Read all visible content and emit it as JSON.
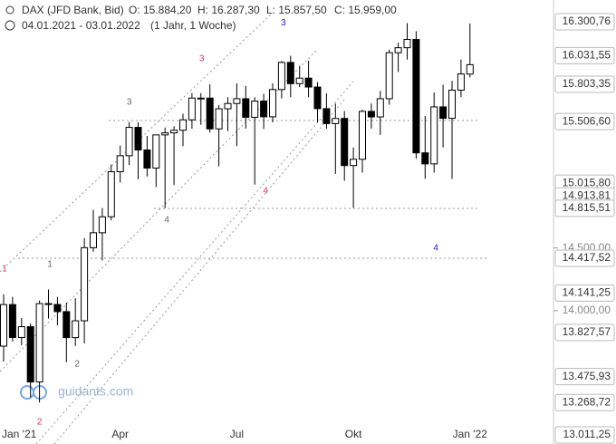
{
  "chart_data": {
    "type": "candlestick",
    "title": "DAX (JFD Bank, Bid)",
    "ohlc_labels": [
      "O: 15.884,20",
      "H: 16.287,30",
      "L: 15.857,50",
      "C: 15.959,00"
    ],
    "date_range": "04.01.2021 - 03.01.2022",
    "period": "(1 Jahr, 1 Woche)",
    "watermark": "guidants.com",
    "categories": [
      "Jan '21",
      null,
      null,
      null,
      null,
      null,
      null,
      null,
      null,
      null,
      null,
      null,
      null,
      "Apr",
      null,
      null,
      null,
      null,
      null,
      null,
      null,
      null,
      null,
      null,
      null,
      null,
      "Jul",
      null,
      null,
      null,
      null,
      null,
      null,
      null,
      null,
      null,
      null,
      null,
      null,
      "Okt",
      null,
      null,
      null,
      null,
      null,
      null,
      null,
      null,
      null,
      null,
      null,
      null,
      "Jan '22"
    ],
    "open": [
      13718,
      14049,
      13787,
      13873,
      13433,
      14057,
      14050,
      13993,
      13786,
      13920,
      14502,
      14621,
      14748,
      15107,
      15234,
      15460,
      15280,
      15136,
      15400,
      15416,
      15437,
      15520,
      15693,
      15693,
      15448,
      15608,
      15650,
      15688,
      15540,
      15669,
      15544,
      15761,
      15977,
      15808,
      15852,
      15781,
      15609,
      15490,
      15531,
      15156,
      15206,
      15587,
      15543,
      15688,
      16054,
      16094,
      16160,
      15257,
      15169,
      15623,
      15532,
      15756,
      15884.2
    ],
    "high": [
      14131,
      14111,
      13942,
      13900,
      14081,
      14169,
      14110,
      14064,
      14099,
      14579,
      14804,
      14818,
      15163,
      15315,
      15502,
      15501,
      15392,
      15400,
      15459,
      15469,
      15569,
      15733,
      15732,
      15803,
      15636,
      15700,
      15810,
      15790,
      15700,
      15727,
      15810,
      15988,
      16030,
      15950,
      15990,
      15820,
      15730,
      15650,
      15590,
      15300,
      15600,
      15650,
      15750,
      16080,
      16134,
      16290,
      16225,
      15550,
      15738,
      15800,
      15830,
      16000,
      16287.3
    ],
    "low": [
      13596,
      13755,
      13726,
      13311,
      13269,
      13938,
      13884,
      13590,
      13720,
      13740,
      14470,
      14400,
      14720,
      15020,
      15160,
      15047,
      15069,
      14985,
      14816,
      15000,
      15311,
      15450,
      15480,
      15418,
      15150,
      15430,
      15311,
      15450,
      15004,
      15447,
      15500,
      15690,
      15700,
      15780,
      15700,
      15500,
      15450,
      15090,
      15035,
      14819,
      15100,
      15450,
      15400,
      15640,
      15900,
      16000,
      15210,
      15050,
      15100,
      15300,
      15050,
      15700,
      15857.5
    ],
    "close": [
      14049,
      13787,
      13873,
      13433,
      14057,
      14050,
      13993,
      13786,
      13920,
      14502,
      14621,
      14748,
      15107,
      15234,
      15460,
      15280,
      15136,
      15400,
      15416,
      15437,
      15520,
      15693,
      15693,
      15448,
      15608,
      15650,
      15688,
      15540,
      15669,
      15544,
      15761,
      15977,
      15808,
      15852,
      15781,
      15609,
      15490,
      15531,
      15156,
      15206,
      15587,
      15543,
      15688,
      16054,
      16094,
      16160,
      15257,
      15169,
      15623,
      15532,
      15756,
      15885,
      15959
    ],
    "ylim": [
      13011.25,
      16300.76
    ],
    "yticks": [
      {
        "value": 14000,
        "label": "14.000,00"
      },
      {
        "value": 14500,
        "label": "14.500,00"
      }
    ],
    "levels": [
      {
        "value": 16300.76,
        "label": "16.300,76"
      },
      {
        "value": 16031.55,
        "label": "16.031,55"
      },
      {
        "value": 15803.35,
        "label": "15.803,35"
      },
      {
        "value": 15506.6,
        "label": "15.506,60"
      },
      {
        "value": 15015.8,
        "label": "15.015,80"
      },
      {
        "value": 14913.81,
        "label": "14.913,81"
      },
      {
        "value": 14815.51,
        "label": "14.815,51"
      },
      {
        "value": 14417.52,
        "label": "14.417,52"
      },
      {
        "value": 14141.25,
        "label": "14.141,25"
      },
      {
        "value": 13827.57,
        "label": "13.827,57"
      },
      {
        "value": 13475.93,
        "label": "13.475,93"
      },
      {
        "value": 13268.72,
        "label": "13.268,72"
      },
      {
        "value": 13011.25,
        "label": "13.011,25"
      }
    ],
    "annotations": [
      {
        "text": "1",
        "color": "#e0306a",
        "x": 0.1,
        "y": 14331
      },
      {
        "text": "1",
        "color": "#666666",
        "x": 5.15,
        "y": 14367
      },
      {
        "text": "2",
        "color": "#666666",
        "x": 8.2,
        "y": 13574
      },
      {
        "text": "2",
        "color": "#e0306a",
        "x": 4,
        "y": 13112
      },
      {
        "text": "3",
        "color": "#666666",
        "x": 14,
        "y": 15659
      },
      {
        "text": "3",
        "color": "#e0306a",
        "x": 22.1,
        "y": 16005
      },
      {
        "text": "3",
        "color": "#2222cc",
        "x": 31.2,
        "y": 16290
      },
      {
        "text": "4",
        "color": "#666666",
        "x": 18.2,
        "y": 14721
      },
      {
        "text": "4",
        "color": "#e0306a",
        "x": 29.2,
        "y": 14952
      },
      {
        "text": "4",
        "color": "#2222cc",
        "x": 48.2,
        "y": 14497
      }
    ],
    "up_color": "#ffffff",
    "down_color": "#000000"
  }
}
